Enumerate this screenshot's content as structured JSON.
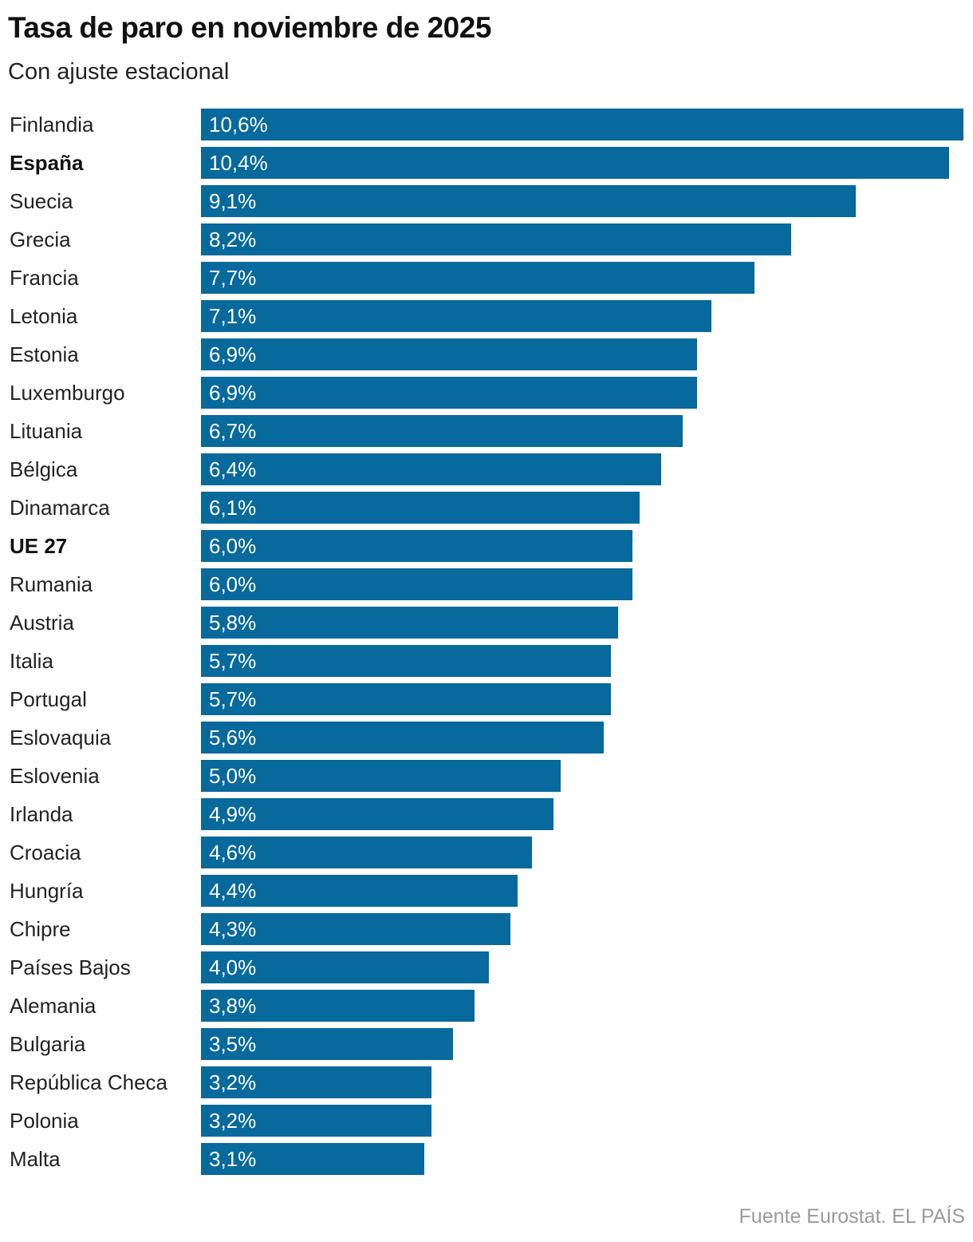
{
  "title": "Tasa de paro en noviembre de 2025",
  "subtitle": "Con ajuste estacional",
  "source": "Fuente Eurostat. EL PAÍS",
  "colors": {
    "bar": "#07699c",
    "bar_text": "#ffffff",
    "source": "#9a9a9a"
  },
  "chart_data": {
    "type": "bar",
    "orientation": "horizontal",
    "title": "Tasa de paro en noviembre de 2025",
    "subtitle": "Con ajuste estacional",
    "xlabel": "",
    "ylabel": "",
    "xlim": [
      0,
      10.6
    ],
    "grid": false,
    "unit": "%",
    "highlighted": [
      "España",
      "UE 27"
    ],
    "categories": [
      "Finlandia",
      "España",
      "Suecia",
      "Grecia",
      "Francia",
      "Letonia",
      "Estonia",
      "Luxemburgo",
      "Lituania",
      "Bélgica",
      "Dinamarca",
      "UE 27",
      "Rumania",
      "Austria",
      "Italia",
      "Portugal",
      "Eslovaquia",
      "Eslovenia",
      "Irlanda",
      "Croacia",
      "Hungría",
      "Chipre",
      "Países Bajos",
      "Alemania",
      "Bulgaria",
      "República Checa",
      "Polonia",
      "Malta"
    ],
    "values": [
      10.6,
      10.4,
      9.1,
      8.2,
      7.7,
      7.1,
      6.9,
      6.9,
      6.7,
      6.4,
      6.1,
      6.0,
      6.0,
      5.8,
      5.7,
      5.7,
      5.6,
      5.0,
      4.9,
      4.6,
      4.4,
      4.3,
      4.0,
      3.8,
      3.5,
      3.2,
      3.2,
      3.1
    ],
    "labels": [
      "10,6%",
      "10,4%",
      "9,1%",
      "8,2%",
      "7,7%",
      "7,1%",
      "6,9%",
      "6,9%",
      "6,7%",
      "6,4%",
      "6,1%",
      "6,0%",
      "6,0%",
      "5,8%",
      "5,7%",
      "5,7%",
      "5,6%",
      "5,0%",
      "4,9%",
      "4,6%",
      "4,4%",
      "4,3%",
      "4,0%",
      "3,8%",
      "3,5%",
      "3,2%",
      "3,2%",
      "3,1%"
    ]
  }
}
